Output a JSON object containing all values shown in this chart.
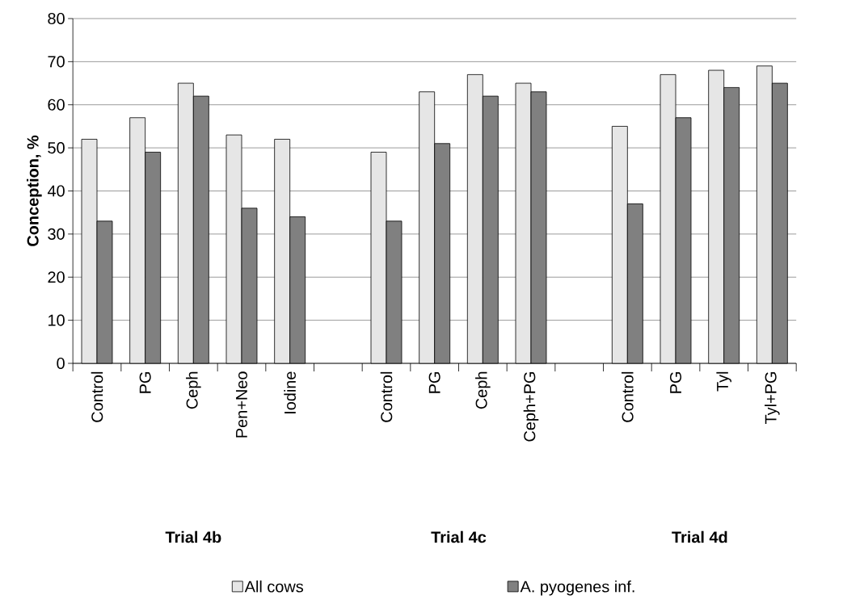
{
  "chart_data": {
    "type": "bar",
    "ylabel": "Conception, %",
    "categories": [
      "Control",
      "PG",
      "Ceph",
      "Pen+Neo",
      "Iodine",
      null,
      "Control",
      "PG",
      "Ceph",
      "Ceph+PG",
      null,
      "Control",
      "PG",
      "Tyl",
      "Tyl+PG"
    ],
    "series": [
      {
        "name": "All cows",
        "color": "#e6e6e6",
        "values": [
          52,
          57,
          65,
          53,
          52,
          null,
          49,
          63,
          67,
          65,
          null,
          55,
          67,
          68,
          69
        ]
      },
      {
        "name": "A. pyogenes inf.",
        "color": "#808080",
        "values": [
          33,
          49,
          62,
          36,
          34,
          null,
          33,
          51,
          62,
          63,
          null,
          37,
          57,
          64,
          65
        ]
      }
    ],
    "annotations": [
      "Trial 4b",
      "Trial 4c",
      "Trial 4d"
    ],
    "ylim": [
      0,
      80
    ],
    "yticks": [
      0,
      10,
      20,
      30,
      40,
      50,
      60,
      70,
      80
    ],
    "grid": "y",
    "legend": "bottom"
  }
}
